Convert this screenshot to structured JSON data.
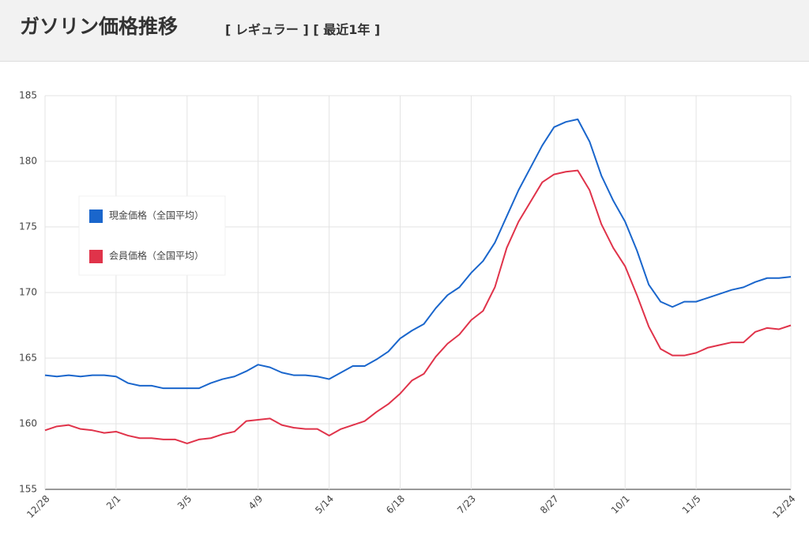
{
  "header": {
    "title": "ガソリン価格推移",
    "subtitle": "[ レギュラー ] [ 最近1年 ]"
  },
  "chart_data": {
    "type": "line",
    "categories": [
      "12/28",
      null,
      null,
      null,
      null,
      null,
      "2/1",
      null,
      null,
      null,
      null,
      null,
      "3/5",
      null,
      null,
      null,
      null,
      null,
      "4/9",
      null,
      null,
      null,
      null,
      null,
      "5/14",
      null,
      null,
      null,
      null,
      null,
      "6/18",
      null,
      null,
      null,
      null,
      null,
      "7/23",
      null,
      null,
      null,
      null,
      null,
      null,
      "8/27",
      null,
      null,
      null,
      null,
      null,
      "10/1",
      null,
      null,
      null,
      null,
      null,
      "11/5",
      null,
      null,
      null,
      null,
      null,
      null,
      null,
      "12/24"
    ],
    "series": [
      {
        "name": "現金価格（全国平均）",
        "color": "#1a66cc",
        "values": [
          163.7,
          163.6,
          163.7,
          163.6,
          163.7,
          163.7,
          163.6,
          163.1,
          162.9,
          162.9,
          162.7,
          162.7,
          162.7,
          162.7,
          163.1,
          163.4,
          163.6,
          164.0,
          164.5,
          164.3,
          163.9,
          163.7,
          163.7,
          163.6,
          163.4,
          163.9,
          164.4,
          164.4,
          164.9,
          165.5,
          166.5,
          167.1,
          167.6,
          168.8,
          169.8,
          170.4,
          171.5,
          172.4,
          173.8,
          175.8,
          177.8,
          179.5,
          181.2,
          182.6,
          183.0,
          183.2,
          181.5,
          178.9,
          177.0,
          175.4,
          173.2,
          170.6,
          169.3,
          168.9,
          169.3,
          169.3,
          169.6,
          169.9,
          170.2,
          170.4,
          170.8,
          171.1,
          171.1,
          171.2
        ]
      },
      {
        "name": "会員価格（全国平均）",
        "color": "#e0334a",
        "values": [
          159.5,
          159.8,
          159.9,
          159.6,
          159.5,
          159.3,
          159.4,
          159.1,
          158.9,
          158.9,
          158.8,
          158.8,
          158.5,
          158.8,
          158.9,
          159.2,
          159.4,
          160.2,
          160.3,
          160.4,
          159.9,
          159.7,
          159.6,
          159.6,
          159.1,
          159.6,
          159.9,
          160.2,
          160.9,
          161.5,
          162.3,
          163.3,
          163.8,
          165.1,
          166.1,
          166.8,
          167.9,
          168.6,
          170.4,
          173.4,
          175.4,
          176.9,
          178.4,
          179.0,
          179.2,
          179.3,
          177.8,
          175.2,
          173.4,
          172.0,
          169.8,
          167.4,
          165.7,
          165.2,
          165.2,
          165.4,
          165.8,
          166.0,
          166.2,
          166.2,
          167.0,
          167.3,
          167.2,
          167.5
        ]
      }
    ],
    "ylim": [
      155,
      185
    ],
    "yticks": [
      155,
      160,
      165,
      170,
      175,
      180,
      185
    ],
    "grid": true,
    "legend": "left"
  }
}
